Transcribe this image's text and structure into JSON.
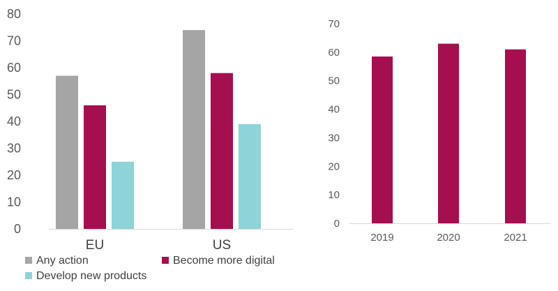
{
  "chart_data": [
    {
      "type": "bar",
      "categories": [
        "EU",
        "US"
      ],
      "series": [
        {
          "name": "Any action",
          "values": [
            57,
            74
          ],
          "color": "#a5a5a5"
        },
        {
          "name": "Become more digital",
          "values": [
            46,
            58
          ],
          "color": "#a50f4f"
        },
        {
          "name": "Develop new products",
          "values": [
            25,
            39
          ],
          "color": "#8dd3d8"
        }
      ],
      "ylim": [
        0,
        80
      ],
      "yticks": [
        "0",
        "10",
        "20",
        "30",
        "40",
        "50",
        "60",
        "70",
        "80"
      ],
      "title": "",
      "xlabel": "",
      "ylabel": "",
      "legend": "bottom"
    },
    {
      "type": "bar",
      "categories": [
        "2019",
        "2020",
        "2021"
      ],
      "series": [
        {
          "name": "",
          "values": [
            58.5,
            63,
            61
          ],
          "color": "#a50f4f"
        }
      ],
      "ylim": [
        0,
        70
      ],
      "yticks": [
        "0",
        "10",
        "20",
        "30",
        "40",
        "50",
        "60",
        "70"
      ],
      "title": "",
      "xlabel": "",
      "ylabel": "",
      "legend": "none"
    }
  ]
}
